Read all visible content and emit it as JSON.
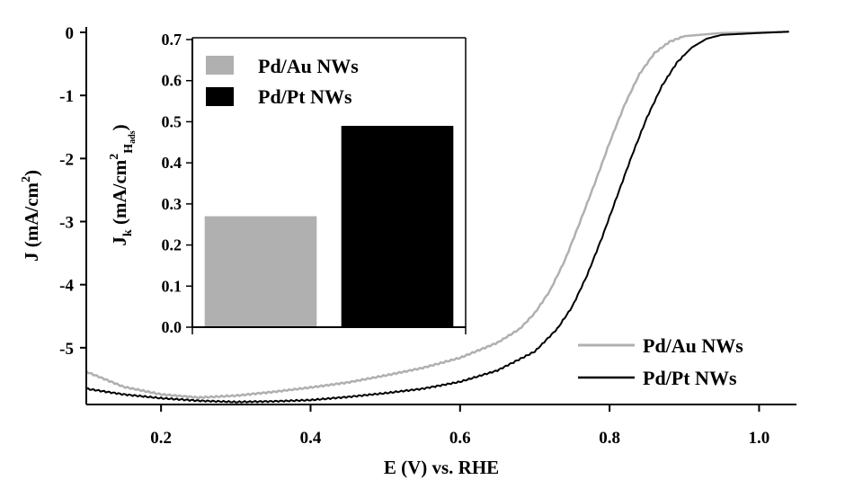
{
  "chart_data": [
    {
      "type": "line",
      "id": "main",
      "xlabel": "E (V) vs. RHE",
      "ylabel": "J (mA/cm",
      "ylabel_sup": "2",
      "ylabel_end": ")",
      "xlim": [
        0.1,
        1.05
      ],
      "ylim": [
        -5.9,
        0.0
      ],
      "xticks": [
        0.2,
        0.4,
        0.6,
        0.8,
        1.0
      ],
      "xtick_labels": [
        "0.2",
        "0.4",
        "0.6",
        "0.8",
        "1.0"
      ],
      "yticks": [
        0,
        -1,
        -2,
        -3,
        -4,
        -5
      ],
      "ytick_labels": [
        "0",
        "-1",
        "-2",
        "-3",
        "-4",
        "-5"
      ],
      "legend_position": "bottom-right",
      "series": [
        {
          "name": "Pd/Au NWs",
          "color": "#b0b0b0",
          "points": [
            [
              0.1,
              -5.38
            ],
            [
              0.15,
              -5.62
            ],
            [
              0.2,
              -5.74
            ],
            [
              0.25,
              -5.79
            ],
            [
              0.3,
              -5.76
            ],
            [
              0.35,
              -5.7
            ],
            [
              0.4,
              -5.63
            ],
            [
              0.45,
              -5.55
            ],
            [
              0.5,
              -5.44
            ],
            [
              0.55,
              -5.32
            ],
            [
              0.6,
              -5.16
            ],
            [
              0.65,
              -4.92
            ],
            [
              0.68,
              -4.7
            ],
            [
              0.7,
              -4.45
            ],
            [
              0.72,
              -4.1
            ],
            [
              0.74,
              -3.62
            ],
            [
              0.76,
              -3.02
            ],
            [
              0.78,
              -2.4
            ],
            [
              0.8,
              -1.75
            ],
            [
              0.82,
              -1.15
            ],
            [
              0.84,
              -0.66
            ],
            [
              0.86,
              -0.33
            ],
            [
              0.88,
              -0.15
            ],
            [
              0.9,
              -0.06
            ],
            [
              0.95,
              -0.01
            ],
            [
              1.0,
              0.0
            ],
            [
              1.04,
              0.01
            ]
          ]
        },
        {
          "name": "Pd/Pt NWs",
          "color": "#000000",
          "points": [
            [
              0.1,
              -5.65
            ],
            [
              0.15,
              -5.74
            ],
            [
              0.2,
              -5.8
            ],
            [
              0.25,
              -5.84
            ],
            [
              0.3,
              -5.86
            ],
            [
              0.35,
              -5.85
            ],
            [
              0.4,
              -5.83
            ],
            [
              0.45,
              -5.78
            ],
            [
              0.5,
              -5.72
            ],
            [
              0.55,
              -5.65
            ],
            [
              0.6,
              -5.54
            ],
            [
              0.65,
              -5.36
            ],
            [
              0.7,
              -5.06
            ],
            [
              0.73,
              -4.7
            ],
            [
              0.75,
              -4.35
            ],
            [
              0.77,
              -3.85
            ],
            [
              0.79,
              -3.25
            ],
            [
              0.81,
              -2.6
            ],
            [
              0.83,
              -1.95
            ],
            [
              0.85,
              -1.35
            ],
            [
              0.87,
              -0.85
            ],
            [
              0.89,
              -0.48
            ],
            [
              0.91,
              -0.24
            ],
            [
              0.93,
              -0.1
            ],
            [
              0.95,
              -0.04
            ],
            [
              1.0,
              -0.01
            ],
            [
              1.04,
              0.01
            ]
          ]
        }
      ]
    },
    {
      "type": "bar",
      "id": "inset",
      "ylabel": "J",
      "ylabel_sub": "k",
      "ylabel_unit": " (mA/cm",
      "ylabel_sup": "2",
      "ylabel_sub2": "H",
      "ylabel_sub3": "ads",
      "ylabel_end": ")",
      "ylim": [
        0.0,
        0.7
      ],
      "yticks": [
        0.0,
        0.1,
        0.2,
        0.3,
        0.4,
        0.5,
        0.6,
        0.7
      ],
      "ytick_labels": [
        "0.0",
        "0.1",
        "0.2",
        "0.3",
        "0.4",
        "0.5",
        "0.6",
        "0.7"
      ],
      "legend_position": "top-left",
      "categories": [
        "Pd/Au NWs",
        "Pd/Pt NWs"
      ],
      "values": [
        0.27,
        0.49
      ],
      "colors": [
        "#b0b0b0",
        "#000000"
      ]
    }
  ]
}
